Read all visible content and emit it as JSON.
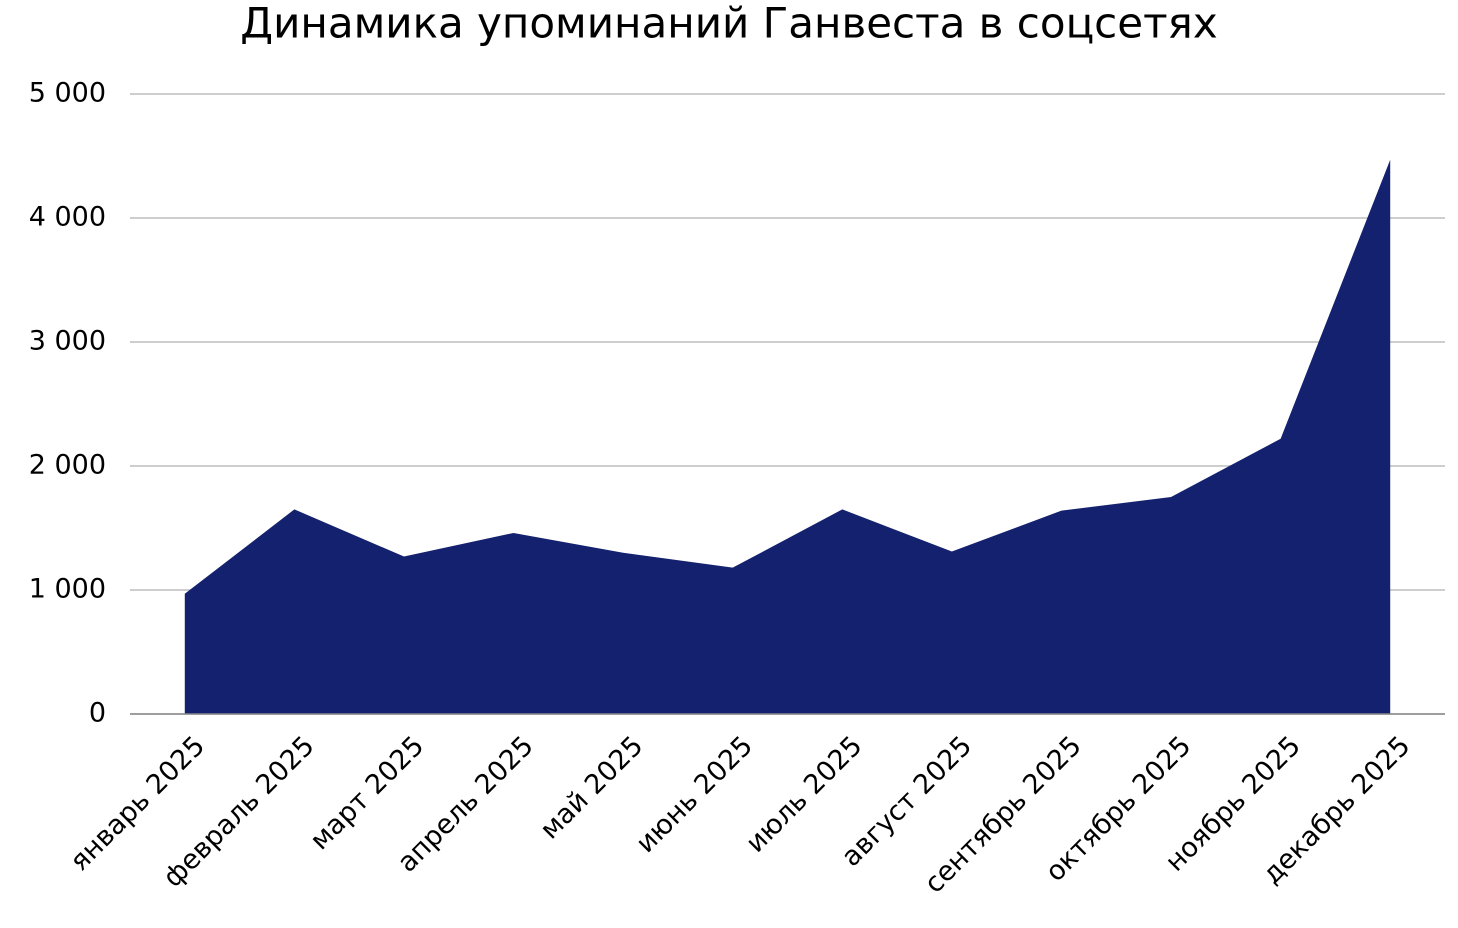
{
  "chart_data": {
    "type": "area",
    "title": "Динамика упоминаний Ганвеста в соцсетях",
    "categories": [
      "январь 2025",
      "февраль 2025",
      "март 2025",
      "апрель 2025",
      "май 2025",
      "июнь 2025",
      "июль 2025",
      "август 2025",
      "сентябрь 2025",
      "октябрь 2025",
      "ноябрь 2025",
      "декабрь 2025"
    ],
    "values": [
      970,
      1650,
      1270,
      1460,
      1300,
      1180,
      1650,
      1310,
      1640,
      1750,
      2220,
      4470
    ],
    "color": "#14216e",
    "ylim": [
      0,
      5000
    ],
    "yticks": [
      0,
      {
        "value": 1000,
        "label": "1 000"
      },
      {
        "value": 2000,
        "label": "2 000"
      },
      {
        "value": 3000,
        "label": "3 000"
      },
      {
        "value": 4000,
        "label": "4 000"
      },
      {
        "value": 5000,
        "label": "5 000"
      }
    ],
    "grid": true
  }
}
